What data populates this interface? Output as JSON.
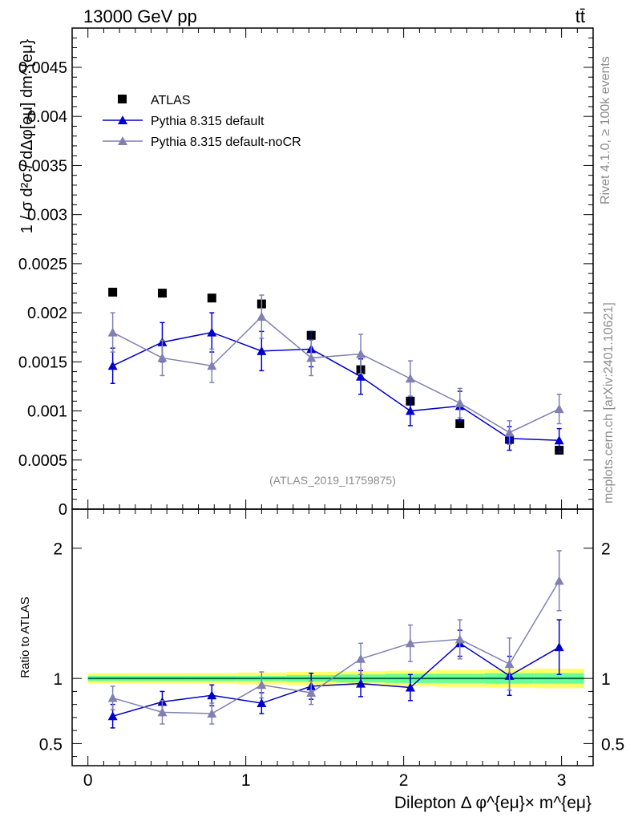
{
  "header": {
    "energy_label": "13000 GeV pp",
    "process_label": "tt̄"
  },
  "side_labels": {
    "rivet": "Rivet 4.1.0, ≥ 100k events",
    "mcplots": "mcplots.cern.ch [arXiv:2401.10621]"
  },
  "colors": {
    "atlas": "#000000",
    "pythia_default": "#0000cc",
    "pythia_nocr": "#8080b3",
    "band_inner": "#66ff99",
    "band_outer": "#ffff66",
    "ref_line": "#006633"
  },
  "chart_data": [
    {
      "type": "line",
      "title": "",
      "analysis_id": "(ATLAS_2019_I1759875)",
      "ylabel": "1 / σ  d²σ / dΔφ[eμ] dm^{eμ}",
      "xlim": [
        -0.1,
        3.2
      ],
      "ylim": [
        0,
        0.0049
      ],
      "y_ticks": [
        0,
        0.0005,
        0.001,
        0.0015,
        0.002,
        0.0025,
        0.003,
        0.0035,
        0.004,
        0.0045
      ],
      "y_tick_labels": [
        "0",
        "0.0005",
        "0.001",
        "0.0015",
        "0.002",
        "0.0025",
        "0.003",
        "0.0035",
        "0.004",
        "0.0045"
      ],
      "x": [
        0.157,
        0.471,
        0.785,
        1.1,
        1.414,
        1.728,
        2.042,
        2.356,
        2.67,
        2.985
      ],
      "series": [
        {
          "name": "ATLAS",
          "marker": "square",
          "values": [
            0.00221,
            0.0022,
            0.00215,
            0.00209,
            0.00177,
            0.00142,
            0.0011,
            0.00087,
            0.00071,
            0.0006
          ],
          "errors": [
            1e-05,
            1e-05,
            1e-05,
            3e-05,
            4e-05,
            3e-05,
            5e-05,
            2e-05,
            2e-05,
            2e-05
          ]
        },
        {
          "name": "Pythia 8.315 default",
          "marker": "triangle",
          "values": [
            0.00146,
            0.0017,
            0.0018,
            0.00161,
            0.00163,
            0.00135,
            0.001,
            0.00105,
            0.00072,
            0.0007
          ],
          "errors": [
            0.00018,
            0.0002,
            0.0002,
            0.0002,
            0.00018,
            0.00018,
            0.00015,
            0.00015,
            0.00012,
            0.00012
          ]
        },
        {
          "name": "Pythia 8.315 default-noCR",
          "marker": "triangle",
          "values": [
            0.0018,
            0.00154,
            0.00146,
            0.00196,
            0.00154,
            0.00158,
            0.00133,
            0.00108,
            0.00078,
            0.00102
          ],
          "errors": [
            0.0002,
            0.00018,
            0.00017,
            0.00022,
            0.00018,
            0.0002,
            0.00018,
            0.00015,
            0.00012,
            0.00015
          ]
        }
      ],
      "legend": [
        "ATLAS",
        "Pythia 8.315 default",
        "Pythia 8.315 default-noCR"
      ]
    },
    {
      "type": "line",
      "ylabel": "Ratio to ATLAS",
      "xlabel": "Dilepton Δ φ^{eμ}× m^{eμ}",
      "xlim": [
        -0.1,
        3.2
      ],
      "ylim": [
        0.33,
        2.3
      ],
      "y_ticks": [
        0.5,
        1,
        2
      ],
      "y_tick_labels": [
        "0.5",
        "1",
        "2"
      ],
      "x_ticks": [
        0,
        1,
        2,
        3
      ],
      "x_tick_labels": [
        "0",
        "1",
        "2",
        "3"
      ],
      "x": [
        0.157,
        0.471,
        0.785,
        1.1,
        1.414,
        1.728,
        2.042,
        2.356,
        2.67,
        2.985
      ],
      "band_inner": [
        0.02,
        0.02,
        0.02,
        0.02,
        0.025,
        0.03,
        0.035,
        0.035,
        0.04,
        0.04
      ],
      "band_outer": [
        0.04,
        0.04,
        0.04,
        0.045,
        0.05,
        0.055,
        0.06,
        0.065,
        0.07,
        0.075
      ],
      "series": [
        {
          "name": "Pythia 8.315 default",
          "values": [
            0.71,
            0.82,
            0.87,
            0.81,
            0.94,
            0.96,
            0.93,
            1.27,
            1.02,
            1.24
          ],
          "errors": [
            0.09,
            0.08,
            0.08,
            0.08,
            0.1,
            0.1,
            0.1,
            0.1,
            0.15,
            0.21
          ]
        },
        {
          "name": "Pythia 8.315 default-noCR",
          "values": [
            0.85,
            0.74,
            0.73,
            0.95,
            0.89,
            1.15,
            1.27,
            1.3,
            1.11,
            1.75
          ],
          "errors": [
            0.09,
            0.09,
            0.08,
            0.1,
            0.09,
            0.12,
            0.14,
            0.15,
            0.2,
            0.23
          ]
        }
      ]
    }
  ]
}
